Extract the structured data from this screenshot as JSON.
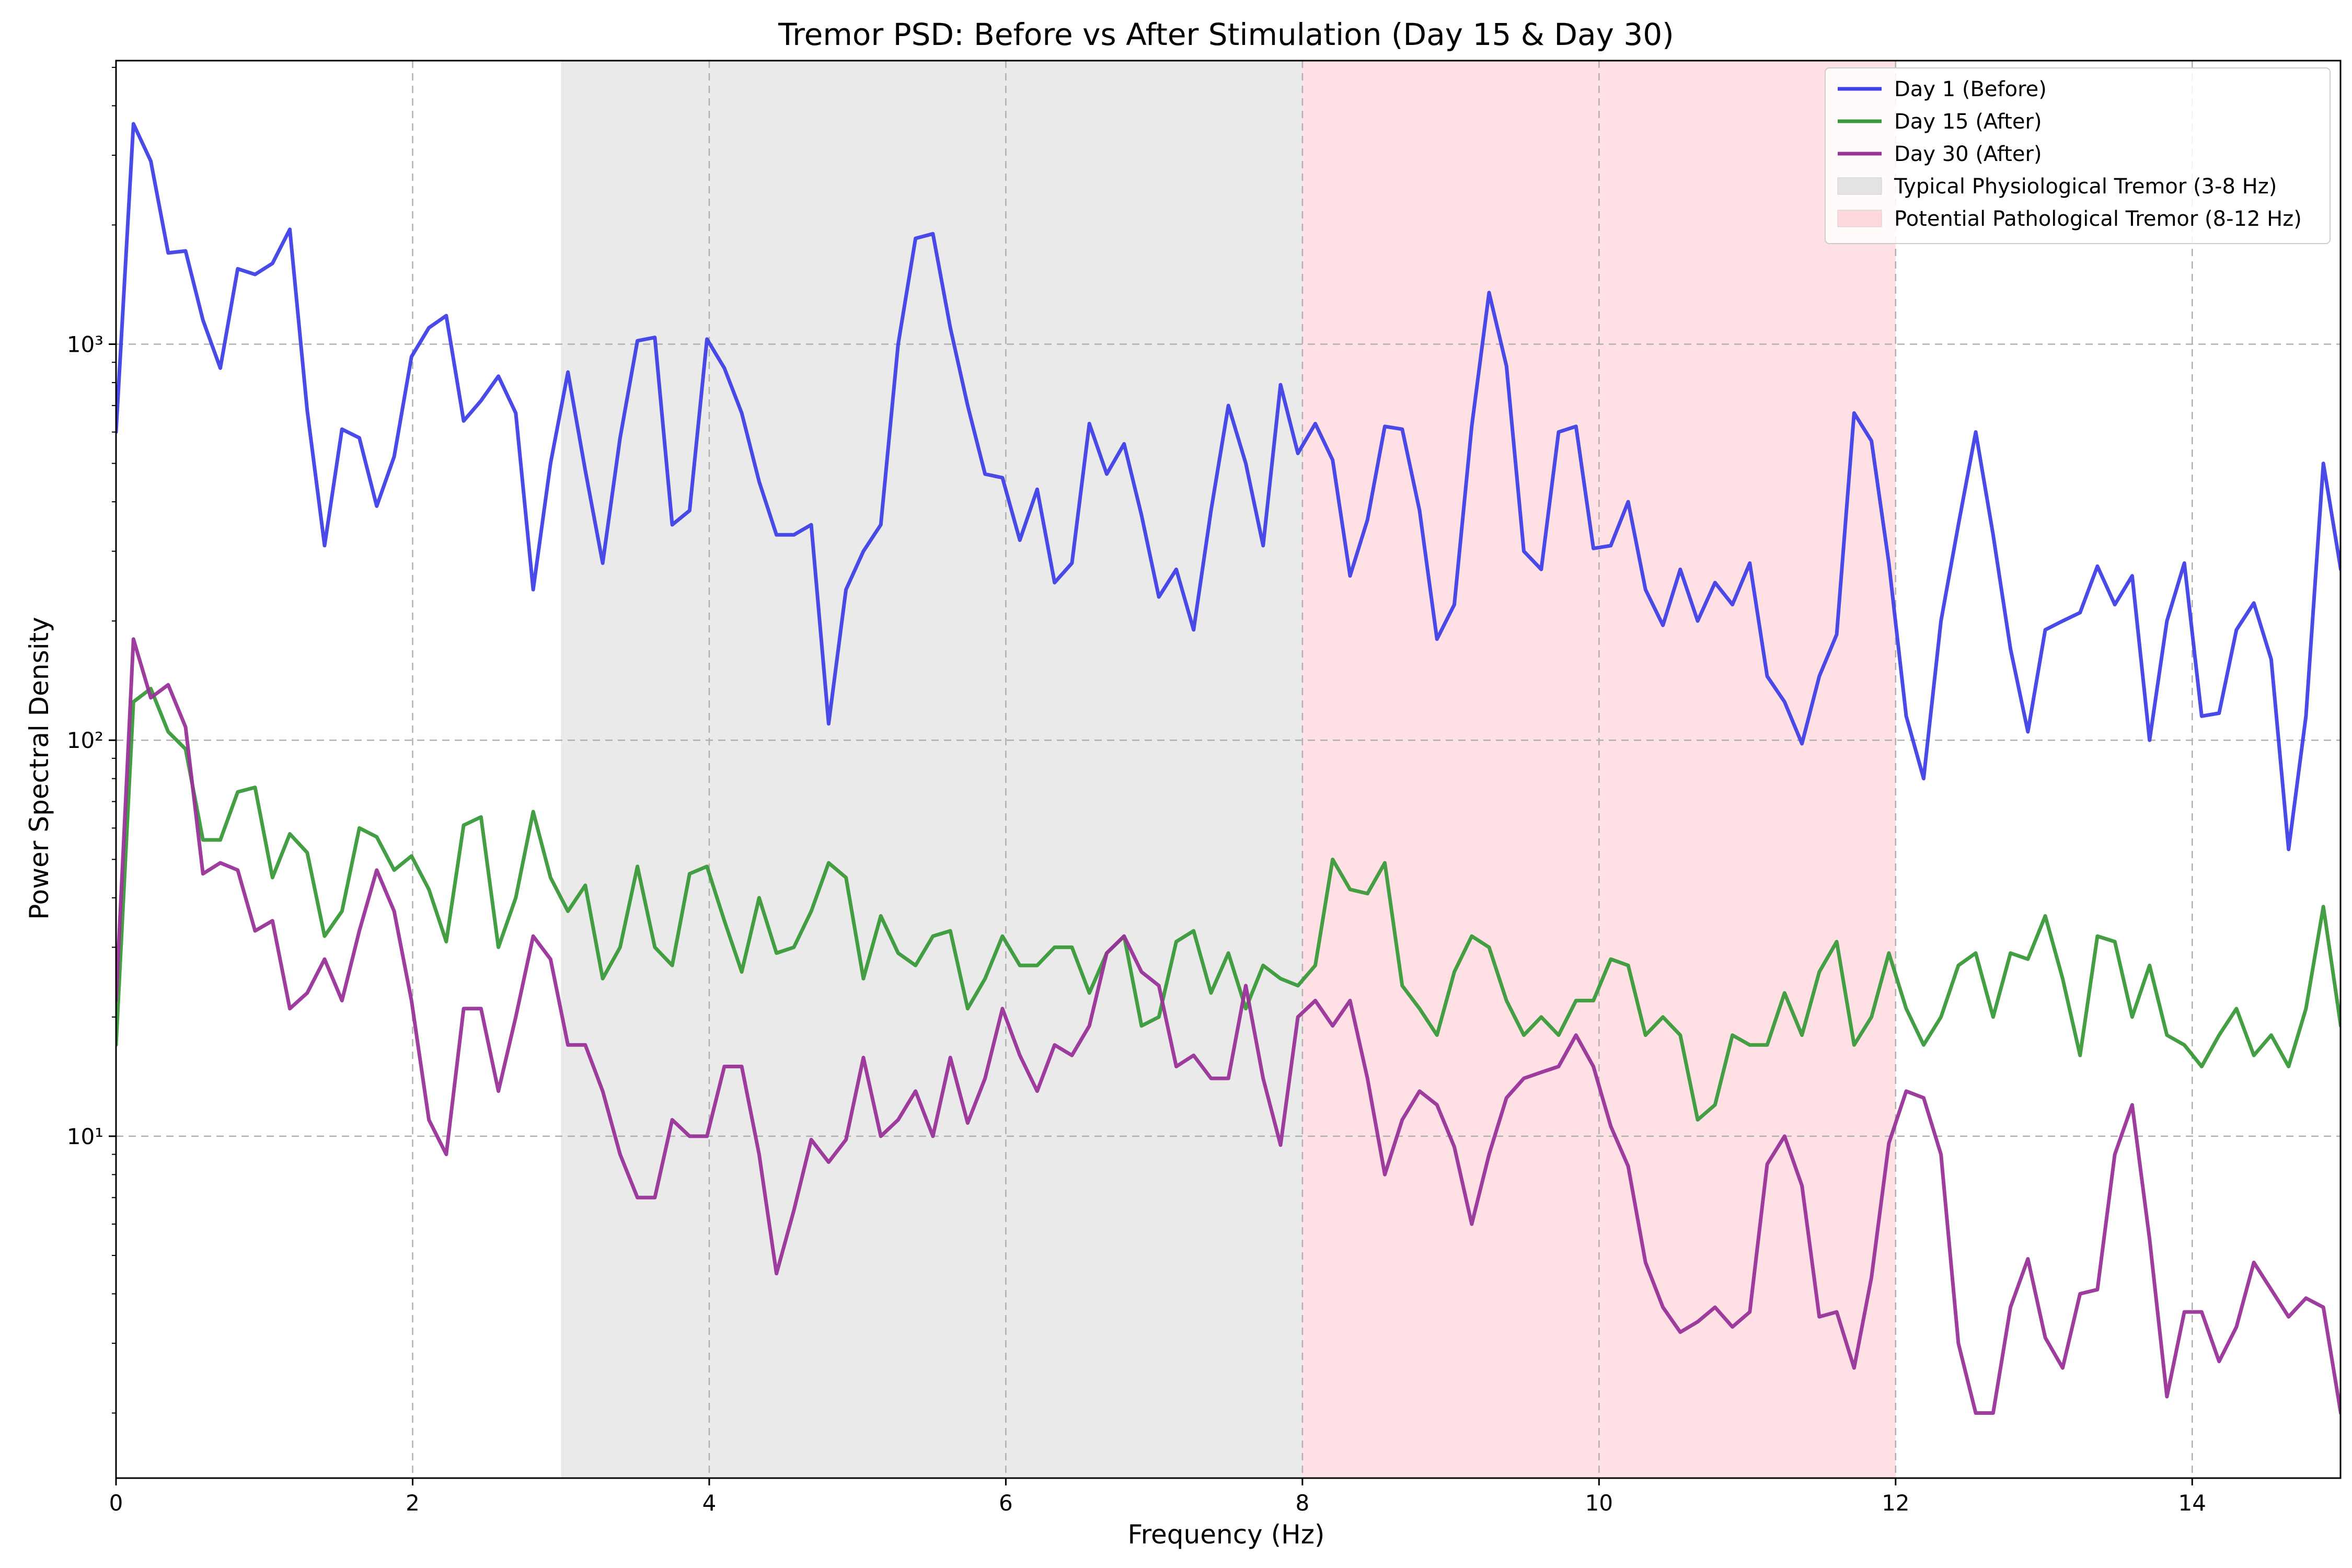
{
  "chart_data": {
    "type": "line",
    "title": "Tremor PSD: Before vs After Stimulation (Day 15 & Day 30)",
    "xlabel": "Frequency (Hz)",
    "ylabel": "Power Spectral Density",
    "xlim": [
      0,
      15
    ],
    "ylim": [
      1.37,
      5200
    ],
    "yscale": "log",
    "x_ticks": [
      0,
      2,
      4,
      6,
      8,
      10,
      12,
      14
    ],
    "x_tick_labels": [
      "0",
      "2",
      "4",
      "6",
      "8",
      "10",
      "12",
      "14"
    ],
    "y_ticks": [
      10,
      100,
      1000
    ],
    "y_tick_labels": [
      "10¹",
      "10²",
      "10³"
    ],
    "grid": true,
    "legend_position": "upper right",
    "bands": [
      {
        "name": "Typical Physiological Tremor (3-8 Hz)",
        "x_start": 3,
        "x_end": 8,
        "color": "#d9d9d9"
      },
      {
        "name": "Potential Pathological Tremor (8-12 Hz)",
        "x_start": 8,
        "x_end": 12,
        "color": "#ffd0d5"
      }
    ],
    "x_step": 0.1172,
    "series": [
      {
        "name": "Day 1 (Before)",
        "color": "#4040e8",
        "values": [
          600,
          3600,
          2900,
          1700,
          1720,
          1150,
          870,
          1550,
          1500,
          1600,
          1950,
          680,
          310,
          610,
          580,
          390,
          520,
          930,
          1100,
          1180,
          640,
          720,
          830,
          670,
          240,
          500,
          850,
          480,
          280,
          580,
          1020,
          1040,
          350,
          380,
          1030,
          870,
          670,
          450,
          330,
          330,
          350,
          110,
          240,
          300,
          350,
          1000,
          1850,
          1900,
          1100,
          700,
          470,
          460,
          320,
          430,
          250,
          280,
          630,
          470,
          560,
          370,
          230,
          270,
          190,
          380,
          700,
          500,
          310,
          790,
          530,
          630,
          510,
          260,
          360,
          620,
          610,
          380,
          180,
          220,
          620,
          1350,
          880,
          300,
          270,
          600,
          620,
          305,
          310,
          400,
          240,
          195,
          270,
          200,
          250,
          220,
          280,
          145,
          125,
          98,
          145,
          185,
          670,
          570,
          280,
          115,
          80,
          200,
          350,
          600,
          330,
          170,
          105,
          190,
          200,
          210,
          275,
          220,
          260,
          100,
          200,
          280,
          115,
          117,
          190,
          222,
          160,
          53,
          115,
          500,
          270
        ]
      },
      {
        "name": "Day 15 (After)",
        "color": "#3a9a3a",
        "values": [
          17,
          125,
          135,
          105,
          95,
          56,
          56,
          74,
          76,
          45,
          58,
          52,
          32,
          37,
          60,
          57,
          47,
          51,
          42,
          31,
          61,
          64,
          30,
          40,
          66,
          45,
          37,
          43,
          25,
          30,
          48,
          30,
          27,
          46,
          48,
          35,
          26,
          40,
          29,
          30,
          37,
          49,
          45,
          25,
          36,
          29,
          27,
          32,
          33,
          21,
          25,
          32,
          27,
          27,
          30,
          30,
          23,
          29,
          32,
          19,
          20,
          31,
          33,
          23,
          29,
          21,
          27,
          25,
          24,
          27,
          50,
          42,
          41,
          49,
          24,
          21,
          18,
          26,
          32,
          30,
          22,
          18,
          20,
          18,
          22,
          22,
          28,
          27,
          18,
          20,
          18,
          11,
          12,
          18,
          17,
          17,
          23,
          18,
          26,
          31,
          17,
          20,
          29,
          21,
          17,
          20,
          27,
          29,
          20,
          29,
          28,
          36,
          25,
          16,
          32,
          31,
          20,
          27,
          18,
          17,
          15,
          18,
          21,
          16,
          18,
          15,
          21,
          38,
          19
        ]
      },
      {
        "name": "Day 30 (After)",
        "color": "#993399",
        "values": [
          22,
          180,
          128,
          138,
          108,
          46,
          49,
          47,
          33,
          35,
          21,
          23,
          28,
          22,
          33,
          47,
          37,
          22,
          11,
          9,
          21,
          21,
          13,
          20,
          32,
          28,
          17,
          17,
          13,
          9,
          7,
          7,
          11,
          10,
          10,
          15,
          15,
          9,
          4.5,
          6.5,
          9.8,
          8.6,
          9.8,
          15.8,
          10,
          11,
          13,
          10,
          15.8,
          10.8,
          14,
          21,
          16,
          13,
          17,
          16,
          19,
          29,
          32,
          26,
          24,
          15,
          16,
          14,
          14,
          24,
          14,
          9.5,
          20,
          22,
          19,
          22,
          14,
          8,
          11,
          13,
          12,
          9.4,
          6,
          9,
          12.5,
          14,
          14.5,
          15,
          18,
          15,
          10.6,
          8.4,
          4.8,
          3.7,
          3.2,
          3.4,
          3.7,
          3.3,
          3.6,
          8.5,
          10,
          7.5,
          3.5,
          3.6,
          2.6,
          4.4,
          9.6,
          13,
          12.5,
          9,
          3,
          2,
          2,
          3.7,
          4.9,
          3.1,
          2.6,
          4,
          4.1,
          9,
          12,
          5.5,
          2.2,
          3.6,
          3.6,
          2.7,
          3.3,
          4.8,
          4.1,
          3.5,
          3.9,
          3.7,
          2
        ]
      }
    ]
  }
}
